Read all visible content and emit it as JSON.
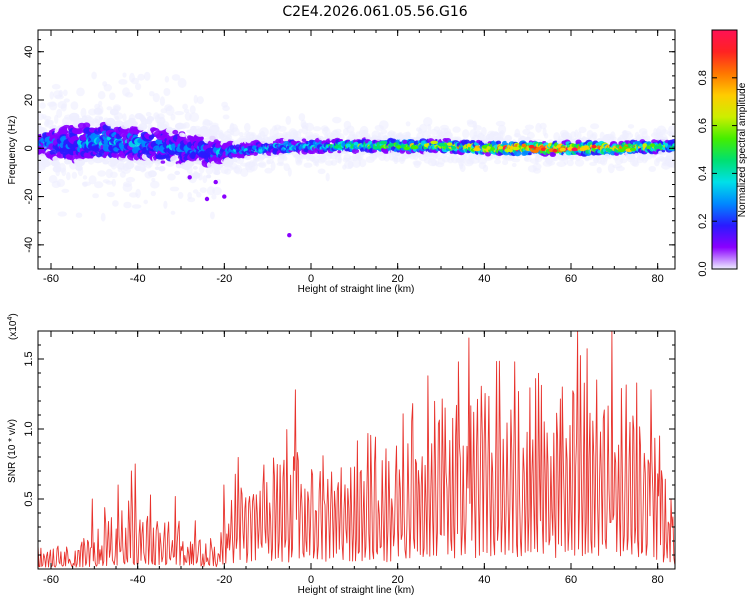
{
  "chart_data": [
    {
      "type": "heatmap",
      "title": "C2E4.2026.061.05.56.G16",
      "xlabel": "Height of straight line (km)",
      "ylabel": "Frequency (Hz)",
      "xlim": [
        -63,
        84
      ],
      "ylim": [
        -50,
        49
      ],
      "xticks": [
        -60,
        -40,
        -20,
        0,
        20,
        40,
        60,
        80
      ],
      "yticks": [
        40,
        20,
        0,
        -20,
        -40
      ],
      "colorbar": {
        "label": "Normalized spectral amplitude",
        "range": [
          0,
          1
        ],
        "ticks": [
          0.0,
          0.2,
          0.4,
          0.6,
          0.8
        ],
        "colors": [
          "#eeeeff",
          "#8a00ff",
          "#2a1aff",
          "#0088ff",
          "#00e0e8",
          "#00e070",
          "#44ee00",
          "#ccee00",
          "#ffcc00",
          "#ff7700",
          "#ff2222",
          "#ff1155"
        ]
      },
      "band": [
        {
          "x": -63,
          "center": 2,
          "spread": 6,
          "amp": 0.25
        },
        {
          "x": -55,
          "center": 2,
          "spread": 8,
          "amp": 0.3
        },
        {
          "x": -48,
          "center": 3,
          "spread": 8,
          "amp": 0.32
        },
        {
          "x": -40,
          "center": 2,
          "spread": 8,
          "amp": 0.3
        },
        {
          "x": -30,
          "center": 0,
          "spread": 7,
          "amp": 0.28
        },
        {
          "x": -22,
          "center": -2,
          "spread": 7,
          "amp": 0.25
        },
        {
          "x": -18,
          "center": -1,
          "spread": 3,
          "amp": 0.3
        },
        {
          "x": -10,
          "center": 0,
          "spread": 3,
          "amp": 0.35
        },
        {
          "x": 0,
          "center": 1,
          "spread": 3,
          "amp": 0.4
        },
        {
          "x": 10,
          "center": 1,
          "spread": 2.5,
          "amp": 0.5
        },
        {
          "x": 20,
          "center": 1,
          "spread": 2.5,
          "amp": 0.55
        },
        {
          "x": 30,
          "center": 1,
          "spread": 2.5,
          "amp": 0.6
        },
        {
          "x": 40,
          "center": 0,
          "spread": 2.5,
          "amp": 0.7
        },
        {
          "x": 50,
          "center": 0,
          "spread": 2.5,
          "amp": 0.85
        },
        {
          "x": 60,
          "center": 0,
          "spread": 2.5,
          "amp": 0.9
        },
        {
          "x": 70,
          "center": 0,
          "spread": 2.5,
          "amp": 0.75
        },
        {
          "x": 84,
          "center": 1,
          "spread": 2.5,
          "amp": 0.45
        }
      ],
      "outliers": [
        {
          "x": -5,
          "y": -36
        },
        {
          "x": -24,
          "y": -21
        },
        {
          "x": -20,
          "y": -20
        },
        {
          "x": -22,
          "y": -14
        },
        {
          "x": -28,
          "y": -12
        }
      ]
    },
    {
      "type": "line",
      "xlabel": "Height of straight line (km)",
      "ylabel": "SNR (10 * v/v)",
      "scale_label": "(x10",
      "scale_exponent": "4",
      "scale_suffix": ")",
      "xlim": [
        -63,
        84
      ],
      "ylim": [
        0,
        1.7
      ],
      "xticks": [
        -60,
        -40,
        -20,
        0,
        20,
        40,
        60,
        80
      ],
      "yticks": [
        "0.5",
        "1.0",
        "1.5"
      ],
      "color": "#e8322c",
      "envelope": [
        {
          "x": -63,
          "y": 0.22
        },
        {
          "x": -52,
          "y": 0.3
        },
        {
          "x": -45,
          "y": 0.55
        },
        {
          "x": -40,
          "y": 0.65
        },
        {
          "x": -30,
          "y": 0.5
        },
        {
          "x": -21,
          "y": 0.3
        },
        {
          "x": -18,
          "y": 0.8
        },
        {
          "x": -5,
          "y": 0.95
        },
        {
          "x": 5,
          "y": 0.9
        },
        {
          "x": 20,
          "y": 1.05
        },
        {
          "x": 30,
          "y": 1.3
        },
        {
          "x": 40,
          "y": 1.4
        },
        {
          "x": 50,
          "y": 1.35
        },
        {
          "x": 60,
          "y": 1.55
        },
        {
          "x": 70,
          "y": 1.5
        },
        {
          "x": 80,
          "y": 1.0
        },
        {
          "x": 84,
          "y": 0.45
        }
      ],
      "peaks": [
        {
          "x": -50.5,
          "y": 0.5
        },
        {
          "x": -44.5,
          "y": 0.6
        },
        {
          "x": -41.5,
          "y": 0.7
        },
        {
          "x": -40.5,
          "y": 0.75
        },
        {
          "x": -20,
          "y": 0.6
        },
        {
          "x": -19.5,
          "y": 0.25
        },
        {
          "x": -3.5,
          "y": 1.28
        },
        {
          "x": 27,
          "y": 1.38
        },
        {
          "x": 31,
          "y": 1.15
        },
        {
          "x": 34,
          "y": 1.48
        },
        {
          "x": 36.5,
          "y": 1.65
        },
        {
          "x": 47,
          "y": 1.48
        },
        {
          "x": 58,
          "y": 1.3
        },
        {
          "x": 61.5,
          "y": 1.7
        },
        {
          "x": 66,
          "y": 1.35
        },
        {
          "x": 69.5,
          "y": 1.7
        },
        {
          "x": 78.5,
          "y": 1.28
        },
        {
          "x": 80.5,
          "y": 0.95
        },
        {
          "x": 83,
          "y": 0.5
        }
      ]
    }
  ]
}
